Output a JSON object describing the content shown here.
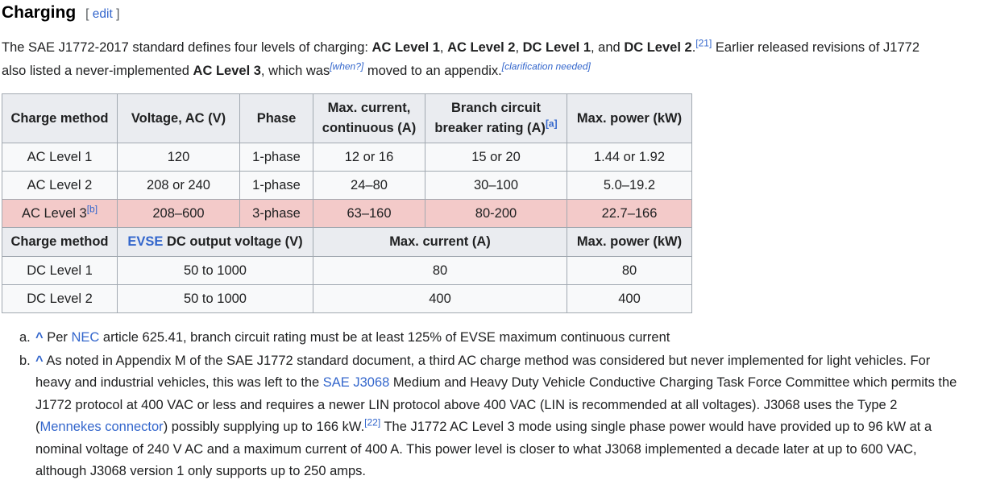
{
  "heading": {
    "title": "Charging",
    "edit_label": "edit",
    "bracket_open": "[ ",
    "bracket_close": " ]"
  },
  "intro": {
    "segments": [
      {
        "t": "text",
        "s": "The SAE J1772-2017 standard defines four levels of charging: "
      },
      {
        "t": "bold",
        "s": "AC Level 1"
      },
      {
        "t": "text",
        "s": ", "
      },
      {
        "t": "bold",
        "s": "AC Level 2"
      },
      {
        "t": "text",
        "s": ", "
      },
      {
        "t": "bold",
        "s": "DC Level 1"
      },
      {
        "t": "text",
        "s": ", and "
      },
      {
        "t": "bold",
        "s": "DC Level 2"
      },
      {
        "t": "text",
        "s": "."
      },
      {
        "t": "suplink",
        "s": "[21]"
      },
      {
        "t": "text",
        "s": " Earlier released revisions of J1772 also listed a never-implemented "
      },
      {
        "t": "bold",
        "s": "AC Level 3"
      },
      {
        "t": "text",
        "s": ", which was"
      },
      {
        "t": "supi",
        "s": "[when?]"
      },
      {
        "t": "text",
        "s": " moved to an appendix."
      },
      {
        "t": "supi",
        "s": "[clarification needed]"
      }
    ]
  },
  "table": {
    "ac_header": {
      "charge_method": "Charge method",
      "voltage": "Voltage, AC (V)",
      "phase": "Phase",
      "max_current": "Max. current, continuous (A)",
      "breaker_segments": [
        {
          "t": "text",
          "s": "Branch circuit breaker rating (A)"
        },
        {
          "t": "suplink",
          "s": "[a]"
        }
      ],
      "max_power": "Max. power (kW)"
    },
    "ac_rows": [
      {
        "method": "AC Level 1",
        "voltage": "120",
        "phase": "1-phase",
        "current": "12 or 16",
        "breaker": "15 or 20",
        "power": "1.44 or 1.92"
      },
      {
        "method": "AC Level 2",
        "voltage": "208 or 240",
        "phase": "1-phase",
        "current": "24–80",
        "breaker": "30–100",
        "power": "5.0–19.2"
      },
      {
        "method_segments": [
          {
            "t": "text",
            "s": "AC Level 3"
          },
          {
            "t": "suplink",
            "s": "[b]"
          }
        ],
        "voltage": "208–600",
        "phase": "3-phase",
        "current": "63–160",
        "breaker": "80-200",
        "power": "22.7–166"
      }
    ],
    "dc_header": {
      "charge_method": "Charge method",
      "voltage_segments": [
        {
          "t": "linkb",
          "s": "EVSE"
        },
        {
          "t": "bold",
          "s": " DC output voltage (V)"
        }
      ],
      "max_current": "Max. current (A)",
      "max_power": "Max. power (kW)"
    },
    "dc_rows": [
      {
        "method": "DC Level 1",
        "voltage": "50 to 1000",
        "current": "80",
        "power": "80"
      },
      {
        "method": "DC Level 2",
        "voltage": "50 to 1000",
        "current": "400",
        "power": "400"
      }
    ]
  },
  "footnotes": [
    {
      "label": "a.",
      "segments": [
        {
          "t": "caret",
          "s": "^"
        },
        {
          "t": "text",
          "s": " Per "
        },
        {
          "t": "link",
          "s": "NEC"
        },
        {
          "t": "text",
          "s": " article 625.41, branch circuit rating must be at least 125% of EVSE maximum continuous current"
        }
      ]
    },
    {
      "label": "b.",
      "segments": [
        {
          "t": "caret",
          "s": "^"
        },
        {
          "t": "text",
          "s": " As noted in Appendix M of the SAE J1772 standard document, a third AC charge method was considered but never implemented for light vehicles. For heavy and industrial vehicles, this was left to the "
        },
        {
          "t": "link",
          "s": "SAE J3068"
        },
        {
          "t": "text",
          "s": " Medium and Heavy Duty Vehicle Conductive Charging Task Force Committee which permits the J1772 protocol at 400 VAC or less and requires a newer LIN protocol above 400 VAC (LIN is recommended at all voltages). J3068 uses the Type 2 ("
        },
        {
          "t": "link",
          "s": "Mennekes connector"
        },
        {
          "t": "text",
          "s": ") possibly supplying up to 166 kW."
        },
        {
          "t": "suplink",
          "s": "[22]"
        },
        {
          "t": "text",
          "s": " The J1772 AC Level 3 mode using single phase power would have provided up to 96 kW at a nominal voltage of 240 V AC and a maximum current of 400 A. This power level is closer to what J3068 implemented a decade later at up to 600 VAC, although J3068 version 1 only supports up to 250 amps."
        }
      ]
    }
  ],
  "colors": {
    "link_blue": "#3366cc",
    "text": "#202122",
    "table_border": "#a2a9b1",
    "header_bg": "#eaecf0",
    "cell_bg": "#f8f9fa",
    "highlight_row_bg": "#f3cac9",
    "edit_bracket": "#54595d"
  }
}
